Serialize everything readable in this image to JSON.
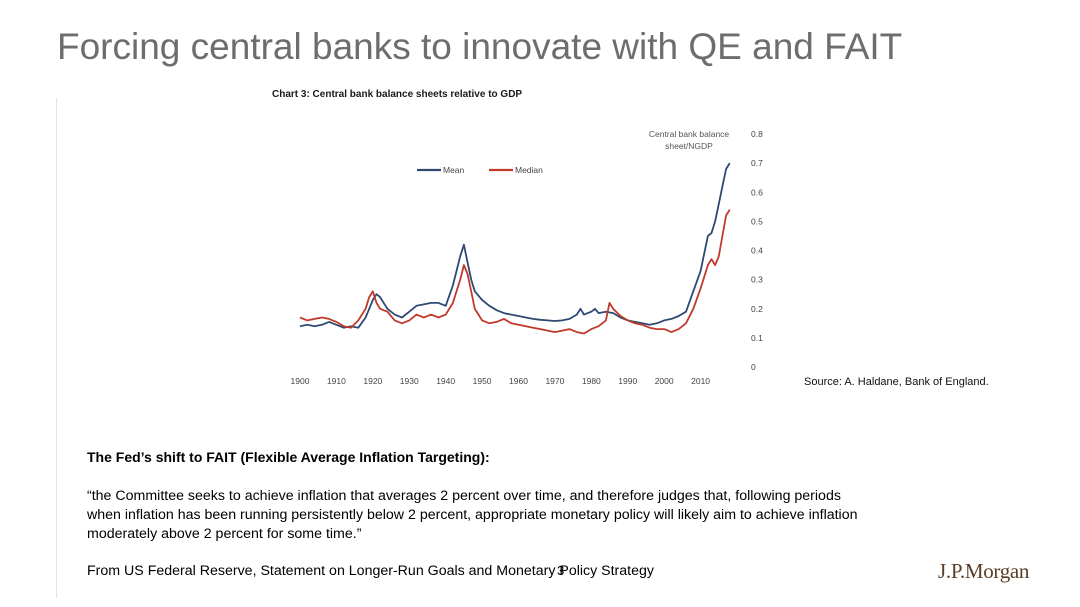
{
  "slide": {
    "title": "Forcing central banks to innovate with QE and FAIT",
    "source": "Source: A. Haldane, Bank of England.",
    "fait_heading": "The Fed’s shift to FAIT (Flexible Average Inflation Targeting):",
    "quote_lines": [
      "“the Committee seeks to achieve inflation that averages 2 percent over time, and therefore judges that, following periods",
      "when inflation has been running persistently below 2 percent, appropriate monetary policy will likely aim to achieve inflation",
      "moderately above 2 percent for some time.”"
    ],
    "citation": "From US Federal Reserve, Statement on Longer-Run Goals and Monetary Policy Strategy",
    "page_number": "3",
    "logo_text": "J.P.Morgan"
  },
  "chart_data": {
    "type": "line",
    "title": "Chart 3: Central bank balance sheets relative to GDP",
    "ylabel_lines": [
      "Central bank balance",
      "sheet/NGDP"
    ],
    "xlim": [
      1900,
      2020
    ],
    "ylim": [
      0,
      0.8
    ],
    "x_ticks": [
      1900,
      1910,
      1920,
      1930,
      1940,
      1950,
      1960,
      1970,
      1980,
      1990,
      2000,
      2010
    ],
    "y_ticks": [
      0,
      0.1,
      0.2,
      0.3,
      0.4,
      0.5,
      0.6,
      0.7,
      0.8
    ],
    "grid": false,
    "legend_position": "top-left",
    "series": [
      {
        "name": "Mean",
        "color": "#2e4a72",
        "points": [
          [
            1900,
            0.14
          ],
          [
            1902,
            0.145
          ],
          [
            1904,
            0.14
          ],
          [
            1906,
            0.145
          ],
          [
            1908,
            0.155
          ],
          [
            1910,
            0.145
          ],
          [
            1912,
            0.135
          ],
          [
            1914,
            0.14
          ],
          [
            1916,
            0.135
          ],
          [
            1918,
            0.17
          ],
          [
            1919,
            0.2
          ],
          [
            1920,
            0.23
          ],
          [
            1921,
            0.25
          ],
          [
            1922,
            0.24
          ],
          [
            1924,
            0.2
          ],
          [
            1926,
            0.18
          ],
          [
            1928,
            0.17
          ],
          [
            1930,
            0.19
          ],
          [
            1932,
            0.21
          ],
          [
            1934,
            0.215
          ],
          [
            1936,
            0.22
          ],
          [
            1938,
            0.22
          ],
          [
            1940,
            0.21
          ],
          [
            1942,
            0.28
          ],
          [
            1944,
            0.38
          ],
          [
            1945,
            0.42
          ],
          [
            1946,
            0.36
          ],
          [
            1947,
            0.3
          ],
          [
            1948,
            0.26
          ],
          [
            1950,
            0.23
          ],
          [
            1952,
            0.21
          ],
          [
            1954,
            0.195
          ],
          [
            1956,
            0.185
          ],
          [
            1958,
            0.18
          ],
          [
            1960,
            0.175
          ],
          [
            1962,
            0.17
          ],
          [
            1964,
            0.165
          ],
          [
            1966,
            0.162
          ],
          [
            1968,
            0.16
          ],
          [
            1970,
            0.158
          ],
          [
            1972,
            0.16
          ],
          [
            1974,
            0.165
          ],
          [
            1976,
            0.18
          ],
          [
            1977,
            0.2
          ],
          [
            1978,
            0.18
          ],
          [
            1980,
            0.19
          ],
          [
            1981,
            0.2
          ],
          [
            1982,
            0.185
          ],
          [
            1984,
            0.19
          ],
          [
            1986,
            0.185
          ],
          [
            1988,
            0.17
          ],
          [
            1990,
            0.16
          ],
          [
            1992,
            0.155
          ],
          [
            1994,
            0.15
          ],
          [
            1996,
            0.145
          ],
          [
            1998,
            0.15
          ],
          [
            2000,
            0.16
          ],
          [
            2002,
            0.165
          ],
          [
            2004,
            0.175
          ],
          [
            2006,
            0.19
          ],
          [
            2008,
            0.26
          ],
          [
            2010,
            0.33
          ],
          [
            2012,
            0.45
          ],
          [
            2013,
            0.46
          ],
          [
            2014,
            0.5
          ],
          [
            2015,
            0.56
          ],
          [
            2016,
            0.62
          ],
          [
            2017,
            0.68
          ],
          [
            2018,
            0.7
          ]
        ]
      },
      {
        "name": "Median",
        "color": "#c0392b",
        "points": [
          [
            1900,
            0.17
          ],
          [
            1902,
            0.16
          ],
          [
            1904,
            0.165
          ],
          [
            1906,
            0.17
          ],
          [
            1908,
            0.165
          ],
          [
            1910,
            0.155
          ],
          [
            1912,
            0.14
          ],
          [
            1914,
            0.135
          ],
          [
            1916,
            0.16
          ],
          [
            1918,
            0.2
          ],
          [
            1919,
            0.24
          ],
          [
            1920,
            0.26
          ],
          [
            1921,
            0.22
          ],
          [
            1922,
            0.2
          ],
          [
            1924,
            0.19
          ],
          [
            1926,
            0.16
          ],
          [
            1928,
            0.15
          ],
          [
            1930,
            0.16
          ],
          [
            1932,
            0.18
          ],
          [
            1934,
            0.17
          ],
          [
            1936,
            0.18
          ],
          [
            1938,
            0.17
          ],
          [
            1940,
            0.18
          ],
          [
            1942,
            0.22
          ],
          [
            1944,
            0.3
          ],
          [
            1945,
            0.35
          ],
          [
            1946,
            0.32
          ],
          [
            1947,
            0.26
          ],
          [
            1948,
            0.2
          ],
          [
            1950,
            0.16
          ],
          [
            1952,
            0.15
          ],
          [
            1954,
            0.155
          ],
          [
            1956,
            0.165
          ],
          [
            1958,
            0.15
          ],
          [
            1960,
            0.145
          ],
          [
            1962,
            0.14
          ],
          [
            1964,
            0.135
          ],
          [
            1966,
            0.13
          ],
          [
            1968,
            0.125
          ],
          [
            1970,
            0.12
          ],
          [
            1972,
            0.125
          ],
          [
            1974,
            0.13
          ],
          [
            1976,
            0.12
          ],
          [
            1978,
            0.115
          ],
          [
            1980,
            0.13
          ],
          [
            1982,
            0.14
          ],
          [
            1984,
            0.16
          ],
          [
            1985,
            0.22
          ],
          [
            1986,
            0.2
          ],
          [
            1988,
            0.175
          ],
          [
            1990,
            0.16
          ],
          [
            1992,
            0.15
          ],
          [
            1994,
            0.145
          ],
          [
            1996,
            0.135
          ],
          [
            1998,
            0.13
          ],
          [
            2000,
            0.13
          ],
          [
            2002,
            0.12
          ],
          [
            2004,
            0.13
          ],
          [
            2006,
            0.15
          ],
          [
            2008,
            0.2
          ],
          [
            2010,
            0.27
          ],
          [
            2012,
            0.35
          ],
          [
            2013,
            0.37
          ],
          [
            2014,
            0.35
          ],
          [
            2015,
            0.38
          ],
          [
            2016,
            0.45
          ],
          [
            2017,
            0.52
          ],
          [
            2018,
            0.54
          ]
        ]
      }
    ]
  }
}
